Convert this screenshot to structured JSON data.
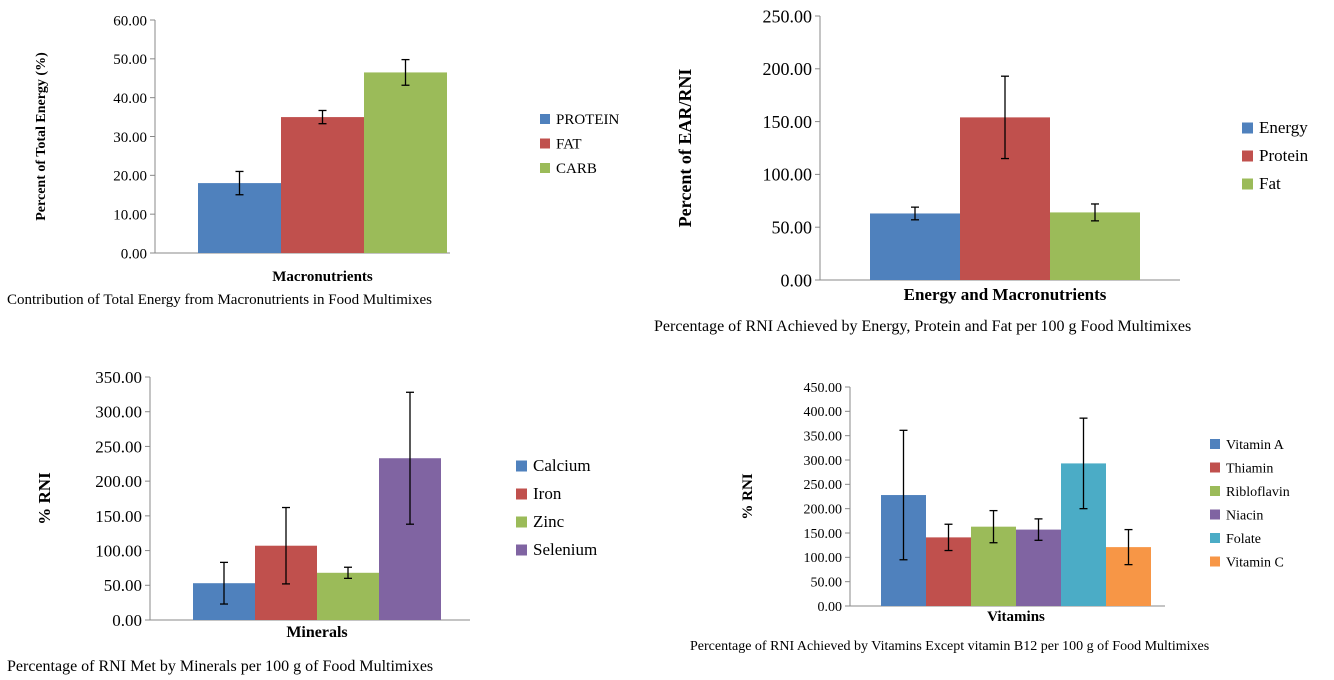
{
  "colors": {
    "blue": "#4F81BD",
    "red": "#C0504D",
    "green": "#9BBB59",
    "purple": "#8064A2",
    "teal": "#4BACC6",
    "orange": "#F79646"
  },
  "chart_data": [
    {
      "type": "bar",
      "title": "",
      "caption": "Contribution of Total Energy from Macronutrients in Food Multimixes",
      "xlabel": "Macronutrients",
      "ylabel": "Percent of Total Energy (%)",
      "ylim": [
        0,
        60
      ],
      "yticks": [
        "0.00",
        "10.00",
        "20.00",
        "30.00",
        "40.00",
        "50.00",
        "60.00"
      ],
      "legend_position": "right",
      "grid": false,
      "series": [
        {
          "name": "PROTEIN",
          "value": 18.0,
          "error": 3.0,
          "color": "#4F81BD"
        },
        {
          "name": "FAT",
          "value": 35.0,
          "error": 1.7,
          "color": "#C0504D"
        },
        {
          "name": "CARB",
          "value": 46.5,
          "error": 3.3,
          "color": "#9BBB59"
        }
      ]
    },
    {
      "type": "bar",
      "title": "",
      "caption": "Percentage of RNI Achieved by Energy, Protein and Fat per 100 g Food Multimixes",
      "xlabel": "Energy and Macronutrients",
      "ylabel": "Percent of EAR/RNI",
      "ylim": [
        0,
        250
      ],
      "yticks": [
        "0.00",
        "50.00",
        "100.00",
        "150.00",
        "200.00",
        "250.00"
      ],
      "legend_position": "right",
      "grid": false,
      "series": [
        {
          "name": "Energy",
          "value": 63,
          "error": 6,
          "color": "#4F81BD"
        },
        {
          "name": "Protein",
          "value": 154,
          "error": 39,
          "color": "#C0504D"
        },
        {
          "name": "Fat",
          "value": 64,
          "error": 8,
          "color": "#9BBB59"
        }
      ]
    },
    {
      "type": "bar",
      "title": "",
      "caption": "Percentage of RNI Met by Minerals per 100 g of Food Multimixes",
      "xlabel": "Minerals",
      "ylabel": "% RNI",
      "ylim": [
        0,
        350
      ],
      "yticks": [
        "0.00",
        "50.00",
        "100.00",
        "150.00",
        "200.00",
        "250.00",
        "300.00",
        "350.00"
      ],
      "legend_position": "right",
      "grid": false,
      "series": [
        {
          "name": "Calcium",
          "value": 53,
          "error": 30,
          "color": "#4F81BD"
        },
        {
          "name": "Iron",
          "value": 107,
          "error": 55,
          "color": "#C0504D"
        },
        {
          "name": "Zinc",
          "value": 68,
          "error": 8,
          "color": "#9BBB59"
        },
        {
          "name": "Selenium",
          "value": 233,
          "error": 95,
          "color": "#8064A2"
        }
      ]
    },
    {
      "type": "bar",
      "title": "",
      "caption": "Percentage of RNI Achieved by Vitamins Except vitamin B12 per 100 g of Food Multimixes",
      "xlabel": "Vitamins",
      "ylabel": "% RNI",
      "ylim": [
        0,
        450
      ],
      "yticks": [
        "0.00",
        "50.00",
        "100.00",
        "150.00",
        "200.00",
        "250.00",
        "300.00",
        "350.00",
        "400.00",
        "450.00"
      ],
      "legend_position": "right",
      "grid": false,
      "series": [
        {
          "name": "Vitamin A",
          "value": 228,
          "error": 133,
          "color": "#4F81BD"
        },
        {
          "name": "Thiamin",
          "value": 141,
          "error": 27,
          "color": "#C0504D"
        },
        {
          "name": "Ribloflavin",
          "value": 163,
          "error": 33,
          "color": "#9BBB59"
        },
        {
          "name": "Niacin",
          "value": 157,
          "error": 22,
          "color": "#8064A2"
        },
        {
          "name": "Folate",
          "value": 293,
          "error": 93,
          "color": "#4BACC6"
        },
        {
          "name": "Vitamin C",
          "value": 121,
          "error": 36,
          "color": "#F79646"
        }
      ]
    }
  ]
}
